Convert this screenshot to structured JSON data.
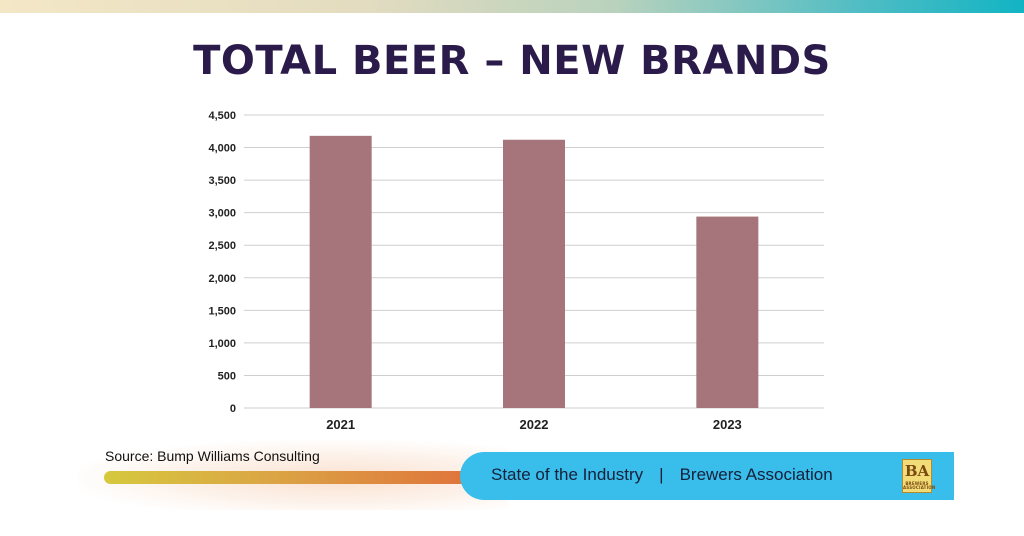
{
  "chart_data": {
    "type": "bar",
    "title": "TOTAL BEER – NEW BRANDS",
    "categories": [
      "2021",
      "2022",
      "2023"
    ],
    "values": [
      4180,
      4120,
      2940
    ],
    "ylim": [
      0,
      4500
    ],
    "yticks": [
      "0",
      "500",
      "1,000",
      "1,500",
      "2,000",
      "2,500",
      "3,000",
      "3,500",
      "4,000",
      "4,500"
    ],
    "grid": true,
    "xlabel": "",
    "ylabel": ""
  },
  "colors": {
    "bar": "#a6747b",
    "grid": "#cfcfcf",
    "title": "#2b1b4a",
    "footer_band": "#39bdea"
  },
  "source": "Source: Bump Williams Consulting",
  "footer": {
    "left": "State of the Industry",
    "separator": "|",
    "right": "Brewers Association"
  },
  "logo": {
    "mark": "BA",
    "subtext": "BREWERS ASSOCIATION"
  },
  "progress": {
    "fraction": 1.0
  }
}
